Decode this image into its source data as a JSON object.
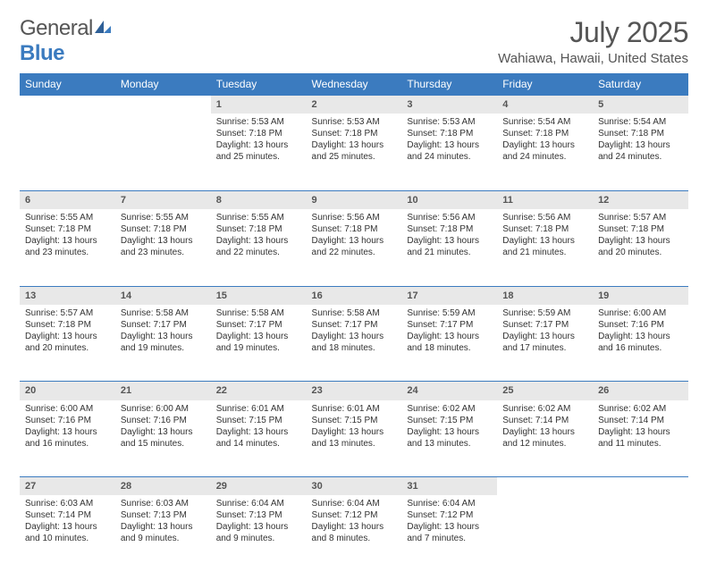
{
  "logo": {
    "word1": "General",
    "word2": "Blue"
  },
  "title": "July 2025",
  "location": "Wahiawa, Hawaii, United States",
  "colors": {
    "header_bg": "#3b7bbf",
    "header_text": "#ffffff",
    "daynum_bg": "#e8e8e8",
    "border": "#3b7bbf",
    "text": "#333333",
    "title_text": "#555555"
  },
  "typography": {
    "title_fontsize": 32,
    "location_fontsize": 15,
    "dayheader_fontsize": 12,
    "daynum_fontsize": 11,
    "body_fontsize": 10
  },
  "day_headers": [
    "Sunday",
    "Monday",
    "Tuesday",
    "Wednesday",
    "Thursday",
    "Friday",
    "Saturday"
  ],
  "weeks": [
    {
      "nums": [
        "",
        "",
        "1",
        "2",
        "3",
        "4",
        "5"
      ],
      "cells": [
        null,
        null,
        {
          "sunrise": "Sunrise: 5:53 AM",
          "sunset": "Sunset: 7:18 PM",
          "daylight": "Daylight: 13 hours and 25 minutes."
        },
        {
          "sunrise": "Sunrise: 5:53 AM",
          "sunset": "Sunset: 7:18 PM",
          "daylight": "Daylight: 13 hours and 25 minutes."
        },
        {
          "sunrise": "Sunrise: 5:53 AM",
          "sunset": "Sunset: 7:18 PM",
          "daylight": "Daylight: 13 hours and 24 minutes."
        },
        {
          "sunrise": "Sunrise: 5:54 AM",
          "sunset": "Sunset: 7:18 PM",
          "daylight": "Daylight: 13 hours and 24 minutes."
        },
        {
          "sunrise": "Sunrise: 5:54 AM",
          "sunset": "Sunset: 7:18 PM",
          "daylight": "Daylight: 13 hours and 24 minutes."
        }
      ]
    },
    {
      "nums": [
        "6",
        "7",
        "8",
        "9",
        "10",
        "11",
        "12"
      ],
      "cells": [
        {
          "sunrise": "Sunrise: 5:55 AM",
          "sunset": "Sunset: 7:18 PM",
          "daylight": "Daylight: 13 hours and 23 minutes."
        },
        {
          "sunrise": "Sunrise: 5:55 AM",
          "sunset": "Sunset: 7:18 PM",
          "daylight": "Daylight: 13 hours and 23 minutes."
        },
        {
          "sunrise": "Sunrise: 5:55 AM",
          "sunset": "Sunset: 7:18 PM",
          "daylight": "Daylight: 13 hours and 22 minutes."
        },
        {
          "sunrise": "Sunrise: 5:56 AM",
          "sunset": "Sunset: 7:18 PM",
          "daylight": "Daylight: 13 hours and 22 minutes."
        },
        {
          "sunrise": "Sunrise: 5:56 AM",
          "sunset": "Sunset: 7:18 PM",
          "daylight": "Daylight: 13 hours and 21 minutes."
        },
        {
          "sunrise": "Sunrise: 5:56 AM",
          "sunset": "Sunset: 7:18 PM",
          "daylight": "Daylight: 13 hours and 21 minutes."
        },
        {
          "sunrise": "Sunrise: 5:57 AM",
          "sunset": "Sunset: 7:18 PM",
          "daylight": "Daylight: 13 hours and 20 minutes."
        }
      ]
    },
    {
      "nums": [
        "13",
        "14",
        "15",
        "16",
        "17",
        "18",
        "19"
      ],
      "cells": [
        {
          "sunrise": "Sunrise: 5:57 AM",
          "sunset": "Sunset: 7:18 PM",
          "daylight": "Daylight: 13 hours and 20 minutes."
        },
        {
          "sunrise": "Sunrise: 5:58 AM",
          "sunset": "Sunset: 7:17 PM",
          "daylight": "Daylight: 13 hours and 19 minutes."
        },
        {
          "sunrise": "Sunrise: 5:58 AM",
          "sunset": "Sunset: 7:17 PM",
          "daylight": "Daylight: 13 hours and 19 minutes."
        },
        {
          "sunrise": "Sunrise: 5:58 AM",
          "sunset": "Sunset: 7:17 PM",
          "daylight": "Daylight: 13 hours and 18 minutes."
        },
        {
          "sunrise": "Sunrise: 5:59 AM",
          "sunset": "Sunset: 7:17 PM",
          "daylight": "Daylight: 13 hours and 18 minutes."
        },
        {
          "sunrise": "Sunrise: 5:59 AM",
          "sunset": "Sunset: 7:17 PM",
          "daylight": "Daylight: 13 hours and 17 minutes."
        },
        {
          "sunrise": "Sunrise: 6:00 AM",
          "sunset": "Sunset: 7:16 PM",
          "daylight": "Daylight: 13 hours and 16 minutes."
        }
      ]
    },
    {
      "nums": [
        "20",
        "21",
        "22",
        "23",
        "24",
        "25",
        "26"
      ],
      "cells": [
        {
          "sunrise": "Sunrise: 6:00 AM",
          "sunset": "Sunset: 7:16 PM",
          "daylight": "Daylight: 13 hours and 16 minutes."
        },
        {
          "sunrise": "Sunrise: 6:00 AM",
          "sunset": "Sunset: 7:16 PM",
          "daylight": "Daylight: 13 hours and 15 minutes."
        },
        {
          "sunrise": "Sunrise: 6:01 AM",
          "sunset": "Sunset: 7:15 PM",
          "daylight": "Daylight: 13 hours and 14 minutes."
        },
        {
          "sunrise": "Sunrise: 6:01 AM",
          "sunset": "Sunset: 7:15 PM",
          "daylight": "Daylight: 13 hours and 13 minutes."
        },
        {
          "sunrise": "Sunrise: 6:02 AM",
          "sunset": "Sunset: 7:15 PM",
          "daylight": "Daylight: 13 hours and 13 minutes."
        },
        {
          "sunrise": "Sunrise: 6:02 AM",
          "sunset": "Sunset: 7:14 PM",
          "daylight": "Daylight: 13 hours and 12 minutes."
        },
        {
          "sunrise": "Sunrise: 6:02 AM",
          "sunset": "Sunset: 7:14 PM",
          "daylight": "Daylight: 13 hours and 11 minutes."
        }
      ]
    },
    {
      "nums": [
        "27",
        "28",
        "29",
        "30",
        "31",
        "",
        ""
      ],
      "cells": [
        {
          "sunrise": "Sunrise: 6:03 AM",
          "sunset": "Sunset: 7:14 PM",
          "daylight": "Daylight: 13 hours and 10 minutes."
        },
        {
          "sunrise": "Sunrise: 6:03 AM",
          "sunset": "Sunset: 7:13 PM",
          "daylight": "Daylight: 13 hours and 9 minutes."
        },
        {
          "sunrise": "Sunrise: 6:04 AM",
          "sunset": "Sunset: 7:13 PM",
          "daylight": "Daylight: 13 hours and 9 minutes."
        },
        {
          "sunrise": "Sunrise: 6:04 AM",
          "sunset": "Sunset: 7:12 PM",
          "daylight": "Daylight: 13 hours and 8 minutes."
        },
        {
          "sunrise": "Sunrise: 6:04 AM",
          "sunset": "Sunset: 7:12 PM",
          "daylight": "Daylight: 13 hours and 7 minutes."
        },
        null,
        null
      ]
    }
  ]
}
